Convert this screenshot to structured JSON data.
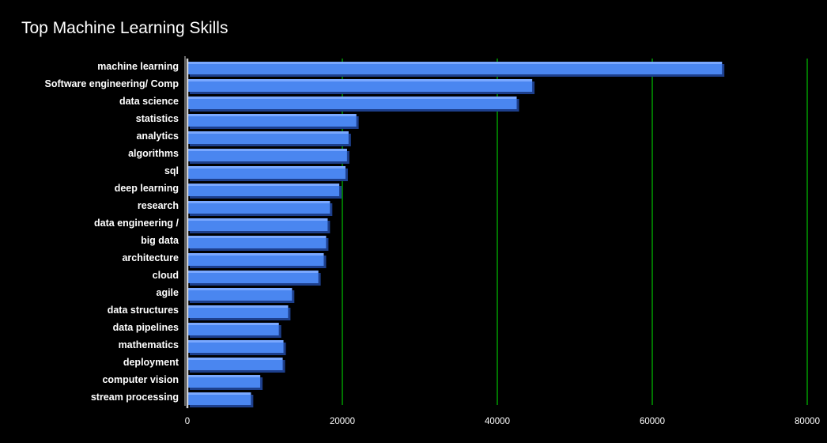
{
  "chart_data": {
    "type": "bar",
    "orientation": "horizontal",
    "title": "Top Machine Learning Skills",
    "xlabel": "",
    "ylabel": "",
    "categories": [
      "machine learning",
      "Software engineering/ Comp",
      "data science",
      "statistics",
      "analytics",
      "algorithms",
      "sql",
      "deep learning",
      "research",
      "data engineering /",
      "big data",
      "architecture",
      "cloud",
      "agile",
      "data structures",
      "data pipelines",
      "mathematics",
      "deployment",
      "computer vision",
      "stream processing"
    ],
    "values": [
      69000,
      44500,
      42500,
      21800,
      20800,
      20600,
      20400,
      19600,
      18400,
      18100,
      17900,
      17600,
      16900,
      13500,
      13000,
      11800,
      12400,
      12300,
      9400,
      8200
    ],
    "xlim": [
      0,
      80000
    ],
    "xticks": [
      "0",
      "20000",
      "40000",
      "60000",
      "80000"
    ],
    "xtick_values": [
      0,
      20000,
      40000,
      60000,
      80000
    ],
    "grid": "vertical",
    "legend": "none",
    "colors": {
      "background": "#000000",
      "bar_fill": "#4a86f0",
      "bar_top": "#7aa8ff",
      "bar_shadow": "#1d3f8c",
      "gridline": "#00c000",
      "axis": "#ffffff",
      "text": "#ffffff"
    }
  }
}
